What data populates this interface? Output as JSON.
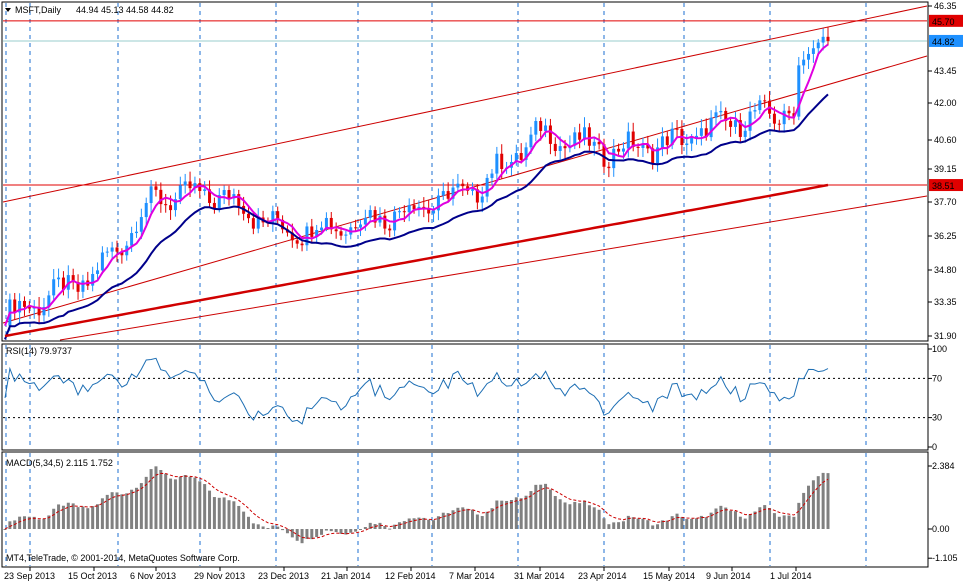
{
  "main": {
    "title": "MSFT,Daily",
    "ohlc": "44.94 45.13 44.58 44.82",
    "y_ticks": [
      "46.35",
      "45.70",
      "44.82",
      "43.45",
      "42.00",
      "40.60",
      "39.15",
      "38.51",
      "37.70",
      "36.25",
      "34.80",
      "33.35",
      "31.90"
    ],
    "price_labels": [
      {
        "text": "45.70",
        "value": 45.7,
        "bg": "#e00000"
      },
      {
        "text": "44.82",
        "value": 44.82,
        "bg": "#1e90ff"
      },
      {
        "text": "38.51",
        "value": 38.51,
        "bg": "#e00000"
      }
    ],
    "horizontal_lines": [
      45.7,
      38.51
    ],
    "ylim": [
      31.6,
      46.5
    ]
  },
  "rsi": {
    "title": "RSI(14) 79.9737",
    "y_ticks": [
      "100",
      "70",
      "30",
      "0"
    ]
  },
  "macd": {
    "title": "MACD(5,34,5) 2.115 1.752",
    "y_ticks": [
      "2.384",
      "0.00",
      "-1.105"
    ]
  },
  "x_ticks": [
    "23 Sep 2013",
    "15 Oct 2013",
    "6 Nov 2013",
    "29 Nov 2013",
    "23 Dec 2013",
    "21 Jan 2014",
    "12 Feb 2014",
    "7 Mar 2014",
    "31 Mar 2014",
    "23 Apr 2014",
    "15 May 2014",
    "9 Jun 2014",
    "1 Jul 2014"
  ],
  "copyright": "MT4,TeleTrade, © 2001-2014, MetaQuotes Software Corp.",
  "colors": {
    "bull": "#1e90ff",
    "bear": "#e00000",
    "sma_fast": "#e000e0",
    "sma_mid": "#00008b",
    "sma_slow": "#d00000",
    "channel": "#cc0000",
    "rsi": "#1e6fb4",
    "macd_hist": "#808080",
    "macd_signal": "#cc0000"
  },
  "chart_data": {
    "type": "candlestick",
    "title": "MSFT,Daily",
    "series_close_keypoints": [
      {
        "date": "23 Sep 2013",
        "close": 32.8
      },
      {
        "date": "15 Oct 2013",
        "close": 34.5
      },
      {
        "date": "6 Nov 2013",
        "close": 38.0
      },
      {
        "date": "29 Nov 2013",
        "close": 38.1
      },
      {
        "date": "23 Dec 2013",
        "close": 36.5
      },
      {
        "date": "21 Jan 2014",
        "close": 36.8
      },
      {
        "date": "12 Feb 2014",
        "close": 37.5
      },
      {
        "date": "7 Mar 2014",
        "close": 38.3
      },
      {
        "date": "31 Mar 2014",
        "close": 40.8
      },
      {
        "date": "23 Apr 2014",
        "close": 40.0
      },
      {
        "date": "15 May 2014",
        "close": 40.3
      },
      {
        "date": "9 Jun 2014",
        "close": 41.3
      },
      {
        "date": "1 Jul 2014",
        "close": 41.8
      },
      {
        "date": "end",
        "close": 44.82
      }
    ],
    "last_ohlc": {
      "open": 44.94,
      "high": 45.13,
      "low": 44.58,
      "close": 44.82
    },
    "rsi_last": 79.9737,
    "macd_last": {
      "macd": 2.115,
      "signal": 1.752
    }
  }
}
